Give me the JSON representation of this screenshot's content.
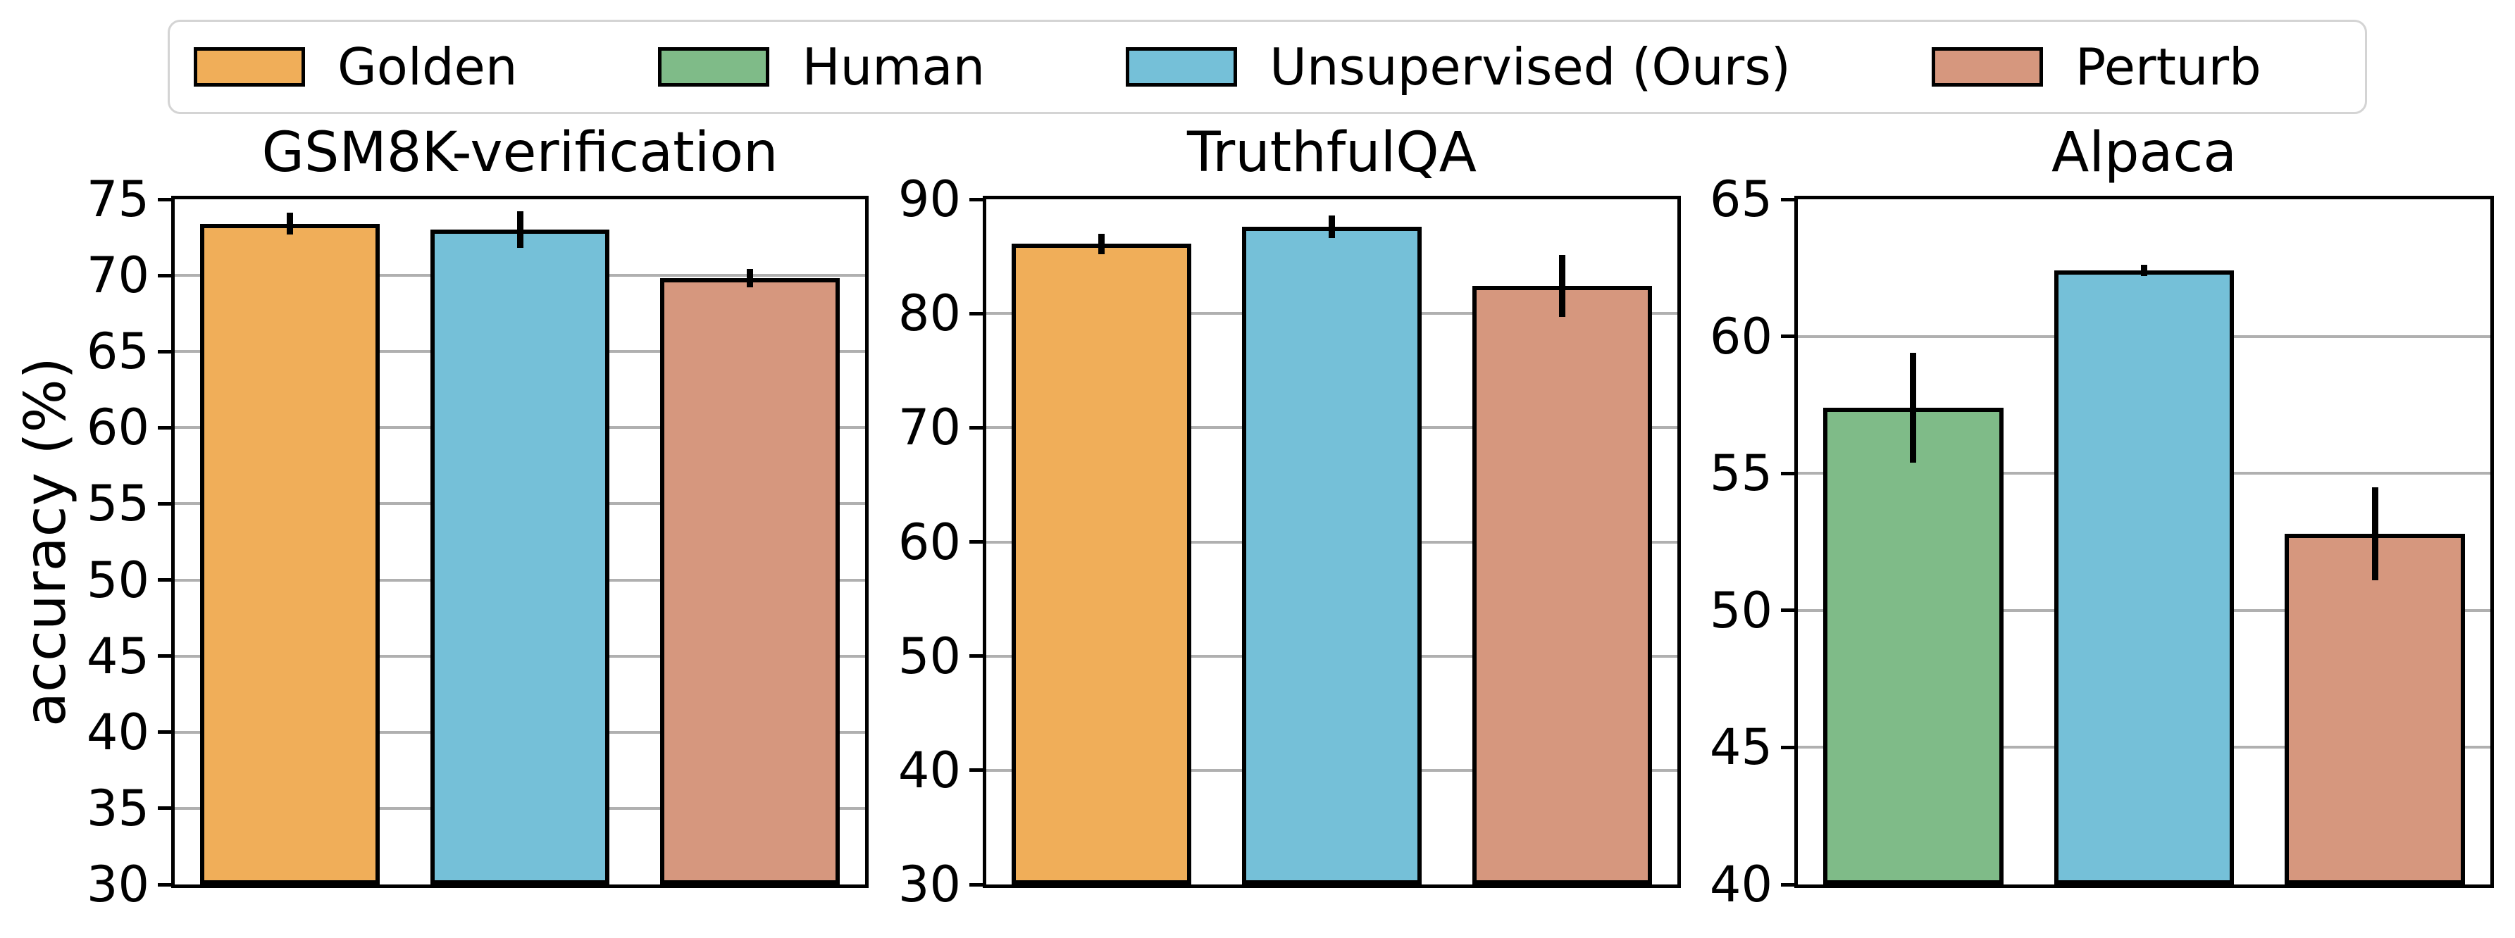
{
  "figure": {
    "ylabel": "accuracy (%)",
    "background_color": "#ffffff",
    "grid_color": "#b0b0b0",
    "bar_edge_color": "#000000",
    "legend": {
      "position": "top",
      "border_color": "#d4d4d4",
      "items": [
        {
          "label": "Golden",
          "color": "#f0ae59"
        },
        {
          "label": "Human",
          "color": "#7fbb88"
        },
        {
          "label": "Unsupervised (Ours)",
          "color": "#75c0d8"
        },
        {
          "label": "Perturb",
          "color": "#d6977e"
        }
      ]
    }
  },
  "chart_data": [
    {
      "type": "bar",
      "title": "GSM8K-verification",
      "ylabel": "accuracy (%)",
      "ylim": [
        30,
        75
      ],
      "yticks": [
        30,
        35,
        40,
        45,
        50,
        55,
        60,
        65,
        70,
        75
      ],
      "grid": true,
      "legend_position": "top-shared",
      "series": [
        {
          "name": "Golden",
          "color": "#f0ae59",
          "value": 73.4,
          "error": 0.7
        },
        {
          "name": "Unsupervised (Ours)",
          "color": "#75c0d8",
          "value": 73.0,
          "error": 1.2
        },
        {
          "name": "Perturb",
          "color": "#d6977e",
          "value": 69.8,
          "error": 0.6
        }
      ]
    },
    {
      "type": "bar",
      "title": "TruthfulQA",
      "ylabel": "accuracy (%)",
      "ylim": [
        30,
        90
      ],
      "yticks": [
        30,
        40,
        50,
        60,
        70,
        80,
        90
      ],
      "grid": true,
      "legend_position": "top-shared",
      "series": [
        {
          "name": "Golden",
          "color": "#f0ae59",
          "value": 86.1,
          "error": 0.9
        },
        {
          "name": "Unsupervised (Ours)",
          "color": "#75c0d8",
          "value": 87.6,
          "error": 1.0
        },
        {
          "name": "Perturb",
          "color": "#d6977e",
          "value": 82.4,
          "error": 2.7
        }
      ]
    },
    {
      "type": "bar",
      "title": "Alpaca",
      "ylabel": "accuracy (%)",
      "ylim": [
        40,
        65
      ],
      "yticks": [
        40,
        45,
        50,
        55,
        60,
        65
      ],
      "grid": true,
      "legend_position": "top-shared",
      "series": [
        {
          "name": "Human",
          "color": "#7fbb88",
          "value": 57.4,
          "error": 2.0
        },
        {
          "name": "Unsupervised (Ours)",
          "color": "#75c0d8",
          "value": 62.4,
          "error": 0.2
        },
        {
          "name": "Perturb",
          "color": "#d6977e",
          "value": 52.8,
          "error": 1.7
        }
      ]
    }
  ]
}
